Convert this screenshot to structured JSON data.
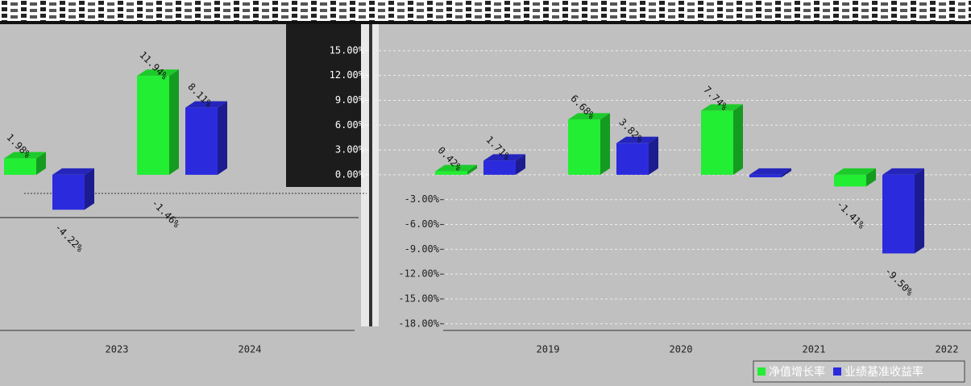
{
  "chart_data": [
    {
      "type": "bar3d",
      "categories": [
        "2023",
        "2024"
      ],
      "ylim": [
        -18.8,
        18.2
      ],
      "series": [
        {
          "color": "#22ee33",
          "values": [
            1.98,
            11.94
          ],
          "value_labels": [
            "1.98%",
            "11.94%"
          ]
        },
        {
          "color": "#2b2bdd",
          "values": [
            -4.22,
            8.11
          ],
          "value_labels": [
            "-4.22%",
            "8.11%"
          ]
        }
      ],
      "annotations": [
        "-1.46%"
      ]
    },
    {
      "type": "bar3d",
      "categories": [
        "2019",
        "2020",
        "2021",
        "2022"
      ],
      "ylim": [
        -18.8,
        18.2
      ],
      "yticks": [
        {
          "value": 15,
          "label": "15.00%"
        },
        {
          "value": 12,
          "label": "12.00%"
        },
        {
          "value": 9,
          "label": "9.00%"
        },
        {
          "value": 6,
          "label": "6.00%"
        },
        {
          "value": 3,
          "label": "3.00%"
        },
        {
          "value": 0,
          "label": "0.00%"
        },
        {
          "value": -3,
          "label": "-3.00%"
        },
        {
          "value": -6,
          "label": "-6.00%"
        },
        {
          "value": -9,
          "label": "-9.00%"
        },
        {
          "value": -12,
          "label": "-12.00%"
        },
        {
          "value": -15,
          "label": "-15.00%"
        },
        {
          "value": -18,
          "label": "-18.00%"
        }
      ],
      "grid": true,
      "series": [
        {
          "name": "净值增长率",
          "color": "#22ee33",
          "values": [
            0.42,
            6.68,
            7.74,
            -1.41
          ],
          "value_labels": [
            "0.42%",
            "6.68%",
            "7.74%",
            "-1.41%"
          ]
        },
        {
          "name": "业绩基准收益率",
          "color": "#2b2bdd",
          "values": [
            1.71,
            3.82,
            -0.3,
            -9.5
          ],
          "value_labels": [
            "1.71%",
            "3.82%",
            null,
            "-9.50%"
          ]
        }
      ]
    }
  ]
}
